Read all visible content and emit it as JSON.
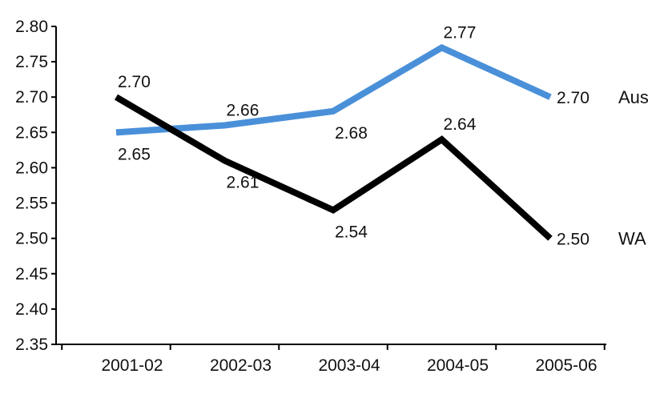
{
  "chart_data": {
    "type": "line",
    "categories": [
      "2001-02",
      "2002-03",
      "2003-04",
      "2004-05",
      "2005-06"
    ],
    "y_ticks": [
      "2.35",
      "2.40",
      "2.45",
      "2.50",
      "2.55",
      "2.60",
      "2.65",
      "2.70",
      "2.75",
      "2.80"
    ],
    "ylim": [
      2.35,
      2.8
    ],
    "grid": false,
    "legend": "none (series labelled at line ends)",
    "series": [
      {
        "name": "Aus",
        "color": "#4a90d9",
        "values": [
          2.65,
          2.66,
          2.68,
          2.77,
          2.7
        ],
        "labels": [
          "2.65",
          "2.66",
          "2.68",
          "2.77",
          "2.70"
        ],
        "label_positions": [
          "below",
          "above",
          "below",
          "above",
          "right"
        ]
      },
      {
        "name": "WA",
        "color": "#000000",
        "values": [
          2.7,
          2.61,
          2.54,
          2.64,
          2.5
        ],
        "labels": [
          "2.70",
          "2.61",
          "2.54",
          "2.64",
          "2.50"
        ],
        "label_positions": [
          "above",
          "below",
          "below",
          "above",
          "right"
        ]
      }
    ]
  }
}
